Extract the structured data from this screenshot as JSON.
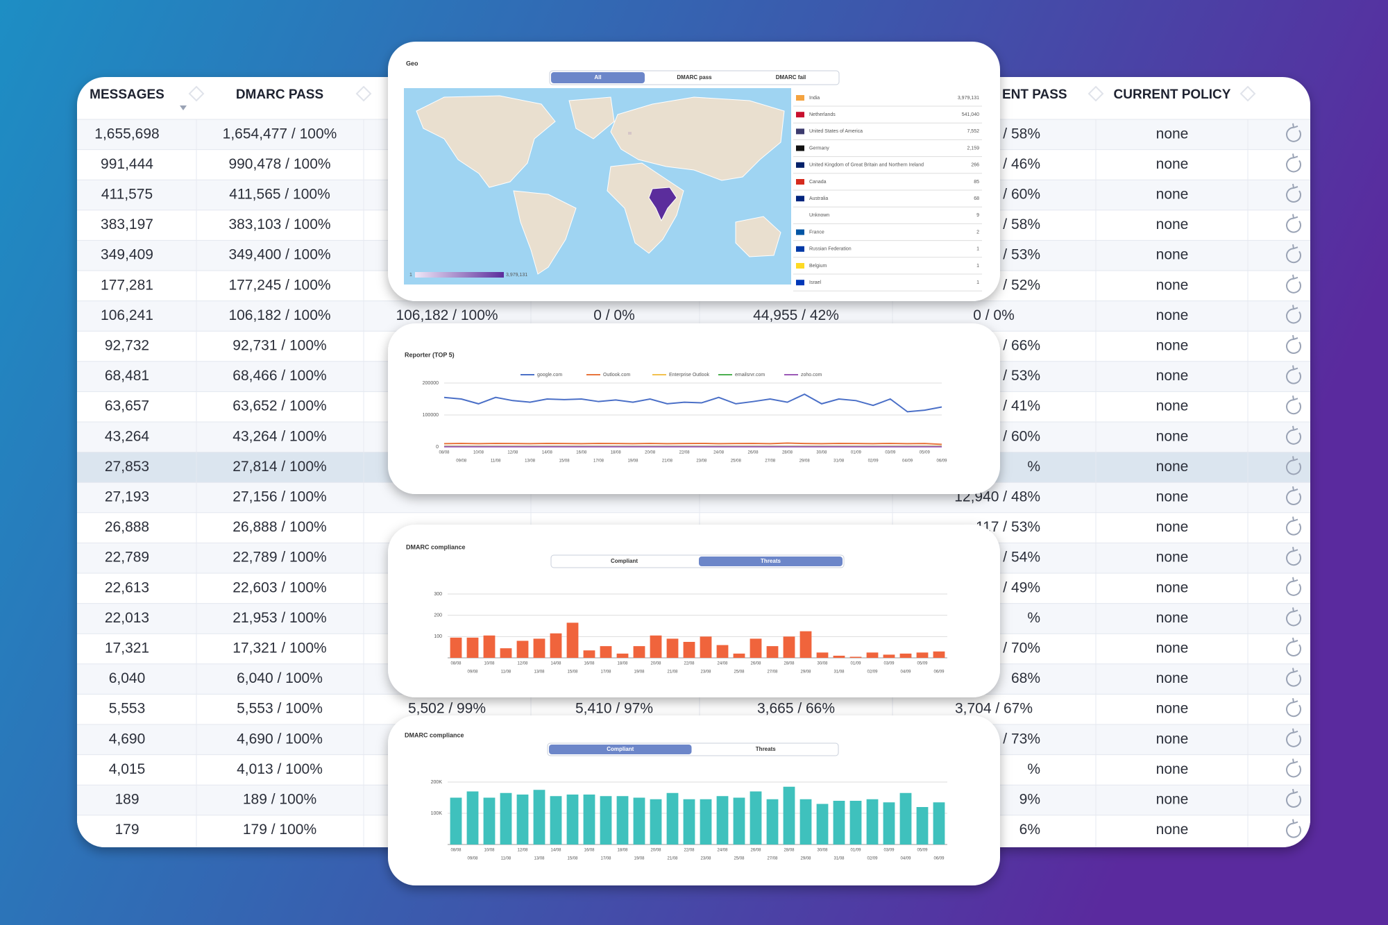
{
  "table": {
    "headers": [
      "MESSAGES",
      "DMARC PASS",
      "ENT PASS",
      "CURRENT POLICY"
    ],
    "selected_row": 11,
    "rows": [
      {
        "messages": "1,655,698",
        "dmarc_pass": "1,654,477 / 100%",
        "right": "/ 58%",
        "policy": "none"
      },
      {
        "messages": "991,444",
        "dmarc_pass": "990,478 / 100%",
        "right": "/ 46%",
        "policy": "none"
      },
      {
        "messages": "411,575",
        "dmarc_pass": "411,565 / 100%",
        "right": "/ 60%",
        "policy": "none"
      },
      {
        "messages": "383,197",
        "dmarc_pass": "383,103 / 100%",
        "right": "/ 58%",
        "policy": "none"
      },
      {
        "messages": "349,409",
        "dmarc_pass": "349,400 / 100%",
        "right": "/ 53%",
        "policy": "none"
      },
      {
        "messages": "177,281",
        "dmarc_pass": "177,245 / 100%",
        "right": "/ 52%",
        "policy": "none"
      },
      {
        "messages": "106,241",
        "dmarc_pass": "106,182 / 100%",
        "middle": [
          "106,182 / 100%",
          "0 / 0%",
          "44,955 / 42%",
          "0 / 0%"
        ],
        "policy": "none"
      },
      {
        "messages": "92,732",
        "dmarc_pass": "92,731 / 100%",
        "right": "/ 66%",
        "policy": "none"
      },
      {
        "messages": "68,481",
        "dmarc_pass": "68,466 / 100%",
        "right": "/ 53%",
        "policy": "none"
      },
      {
        "messages": "63,657",
        "dmarc_pass": "63,652 / 100%",
        "right": "/ 41%",
        "policy": "none"
      },
      {
        "messages": "43,264",
        "dmarc_pass": "43,264 / 100%",
        "right": "/ 60%",
        "policy": "none"
      },
      {
        "messages": "27,853",
        "dmarc_pass": "27,814 / 100%",
        "right": "%",
        "policy": "none"
      },
      {
        "messages": "27,193",
        "dmarc_pass": "27,156 / 100%",
        "right": "12,940 / 48%",
        "policy": "none"
      },
      {
        "messages": "26,888",
        "dmarc_pass": "26,888 / 100%",
        "right": "117 / 53%",
        "policy": "none"
      },
      {
        "messages": "22,789",
        "dmarc_pass": "22,789 / 100%",
        "right": "/ 54%",
        "policy": "none"
      },
      {
        "messages": "22,613",
        "dmarc_pass": "22,603 / 100%",
        "right": "/ 49%",
        "policy": "none"
      },
      {
        "messages": "22,013",
        "dmarc_pass": "21,953 / 100%",
        "right": "%",
        "policy": "none"
      },
      {
        "messages": "17,321",
        "dmarc_pass": "17,321 / 100%",
        "right": "/ 70%",
        "policy": "none"
      },
      {
        "messages": "6,040",
        "dmarc_pass": "6,040 / 100%",
        "right": "68%",
        "policy": "none"
      },
      {
        "messages": "5,553",
        "dmarc_pass": "5,553 / 100%",
        "middle": [
          "5,502 / 99%",
          "5,410 / 97%",
          "3,665 / 66%",
          "3,704 / 67%"
        ],
        "policy": "none"
      },
      {
        "messages": "4,690",
        "dmarc_pass": "4,690 / 100%",
        "right": "/ 73%",
        "policy": "none"
      },
      {
        "messages": "4,015",
        "dmarc_pass": "4,013 / 100%",
        "right": "%",
        "policy": "none"
      },
      {
        "messages": "189",
        "dmarc_pass": "189 / 100%",
        "right": "9%",
        "policy": "none"
      },
      {
        "messages": "179",
        "dmarc_pass": "179 / 100%",
        "right": "6%",
        "policy": "none"
      }
    ]
  },
  "geo": {
    "title": "Geo",
    "toggle": {
      "options": [
        "All",
        "DMARC pass",
        "DMARC fail"
      ],
      "active": 0
    },
    "scale": [
      1,
      {
        "value": 3979131,
        "label": "3,979,131"
      }
    ],
    "color": "#5b2d9c",
    "countries": [
      {
        "name": "India",
        "value": 3979131,
        "label": "3,979,131"
      },
      {
        "name": "Netherlands",
        "value": 541040,
        "label": "541,040"
      },
      {
        "name": "United States of America",
        "value": 7552,
        "label": "7,552"
      },
      {
        "name": "Germany",
        "value": 2159,
        "label": "2,159"
      },
      {
        "name": "United Kingdom of Great Britain and Northern Ireland",
        "value": 266,
        "label": "266"
      },
      {
        "name": "Canada",
        "value": 85,
        "label": "85"
      },
      {
        "name": "Australia",
        "value": 68,
        "label": "68"
      },
      {
        "name": "Unknown",
        "value": 9,
        "label": "9"
      },
      {
        "name": "France",
        "value": 2,
        "label": "2"
      },
      {
        "name": "Russian Federation",
        "value": 1,
        "label": "1"
      },
      {
        "name": "Belgium",
        "value": 1,
        "label": "1"
      },
      {
        "name": "Israel",
        "value": 1,
        "label": "1"
      }
    ]
  },
  "chart_data": [
    {
      "type": "line",
      "title": "Reporter (TOP 5)",
      "categories": [
        "08/08",
        "09/08",
        "10/08",
        "11/08",
        "12/08",
        "13/08",
        "14/08",
        "15/08",
        "16/08",
        "17/08",
        "18/08",
        "19/08",
        "20/08",
        "21/08",
        "22/08",
        "23/08",
        "24/08",
        "25/08",
        "26/08",
        "27/08",
        "28/08",
        "29/08",
        "30/08",
        "31/08",
        "01/09",
        "02/09",
        "03/09",
        "04/09",
        "05/09",
        "06/09"
      ],
      "ylim": [
        0,
        200000
      ],
      "yticks": [
        0,
        100000,
        200000
      ],
      "grid": true,
      "series": [
        {
          "name": "google.com",
          "color": "#4a6fc7",
          "values": [
            155000,
            150000,
            135000,
            155000,
            145000,
            140000,
            150000,
            148000,
            150000,
            142000,
            147000,
            140000,
            150000,
            135000,
            140000,
            138000,
            155000,
            135000,
            142000,
            150000,
            140000,
            165000,
            135000,
            150000,
            145000,
            130000,
            150000,
            110000,
            115000,
            125000
          ]
        },
        {
          "name": "Outlook.com",
          "color": "#e8743b",
          "values": [
            10000,
            11000,
            10000,
            11000,
            10500,
            10000,
            11000,
            10500,
            10000,
            11000,
            10500,
            10000,
            11000,
            10000,
            10500,
            11000,
            10000,
            10500,
            11000,
            10000,
            12000,
            10500,
            10000,
            11000,
            10500,
            10000,
            11000,
            10000,
            10500,
            8000
          ]
        },
        {
          "name": "Enterprise Outlook",
          "color": "#f2c14e",
          "values": [
            2000,
            2000,
            2000,
            2000,
            2000,
            2000,
            2000,
            2000,
            2000,
            2000,
            2000,
            2000,
            2000,
            2000,
            2000,
            2000,
            2000,
            2000,
            2000,
            2000,
            2000,
            2000,
            2000,
            2000,
            2000,
            2000,
            2000,
            2000,
            2000,
            2000
          ]
        },
        {
          "name": "emailsrvr.com",
          "color": "#4caf50",
          "values": [
            1000,
            1000,
            1000,
            1000,
            1000,
            1000,
            1000,
            1000,
            1000,
            1000,
            1000,
            1000,
            1000,
            1000,
            1000,
            1000,
            1000,
            1000,
            1000,
            1000,
            1000,
            1000,
            1000,
            1000,
            1000,
            1000,
            1000,
            1000,
            1000,
            1000
          ]
        },
        {
          "name": "zoho.com",
          "color": "#9b59b6",
          "values": [
            500,
            500,
            500,
            500,
            500,
            500,
            500,
            500,
            500,
            500,
            500,
            500,
            500,
            500,
            500,
            500,
            500,
            500,
            500,
            500,
            500,
            500,
            500,
            500,
            500,
            500,
            500,
            500,
            500,
            500
          ]
        }
      ]
    },
    {
      "type": "bar",
      "title": "DMARC compliance",
      "toggle": {
        "options": [
          "Compliant",
          "Threats"
        ],
        "active": 1
      },
      "categories": [
        "08/08",
        "09/08",
        "10/08",
        "11/08",
        "12/08",
        "13/08",
        "14/08",
        "15/08",
        "16/08",
        "17/08",
        "18/08",
        "19/08",
        "20/08",
        "21/08",
        "22/08",
        "23/08",
        "24/08",
        "25/08",
        "26/08",
        "27/08",
        "28/08",
        "29/08",
        "30/08",
        "31/08",
        "01/09",
        "02/09",
        "03/09",
        "04/09",
        "05/09",
        "06/09"
      ],
      "values": [
        95,
        95,
        105,
        45,
        80,
        90,
        115,
        165,
        35,
        55,
        20,
        55,
        105,
        90,
        75,
        100,
        60,
        20,
        90,
        55,
        100,
        125,
        25,
        10,
        5,
        25,
        15,
        20,
        25,
        30
      ],
      "color": "#f0643c",
      "ylim": [
        0,
        300
      ],
      "yticks": [
        100,
        200,
        300
      ],
      "grid": true
    },
    {
      "type": "bar",
      "title": "DMARC compliance",
      "toggle": {
        "options": [
          "Compliant",
          "Threats"
        ],
        "active": 0
      },
      "categories": [
        "08/08",
        "09/08",
        "10/08",
        "11/08",
        "12/08",
        "13/08",
        "14/08",
        "15/08",
        "16/08",
        "17/08",
        "18/08",
        "19/08",
        "20/08",
        "21/08",
        "22/08",
        "23/08",
        "24/08",
        "25/08",
        "26/08",
        "27/08",
        "28/08",
        "29/08",
        "30/08",
        "31/08",
        "01/09",
        "02/09",
        "03/09",
        "04/09",
        "05/09",
        "06/09"
      ],
      "values": [
        150000,
        170000,
        150000,
        165000,
        160000,
        175000,
        155000,
        160000,
        160000,
        155000,
        155000,
        150000,
        145000,
        165000,
        145000,
        145000,
        155000,
        150000,
        170000,
        145000,
        185000,
        145000,
        130000,
        140000,
        140000,
        145000,
        135000,
        165000,
        120000,
        135000
      ],
      "color": "#3fc1bd",
      "ylim": [
        0,
        200000
      ],
      "yticks": [
        {
          "value": 100000,
          "label": "100K"
        },
        {
          "value": 200000,
          "label": "200K"
        }
      ],
      "grid": true
    }
  ]
}
